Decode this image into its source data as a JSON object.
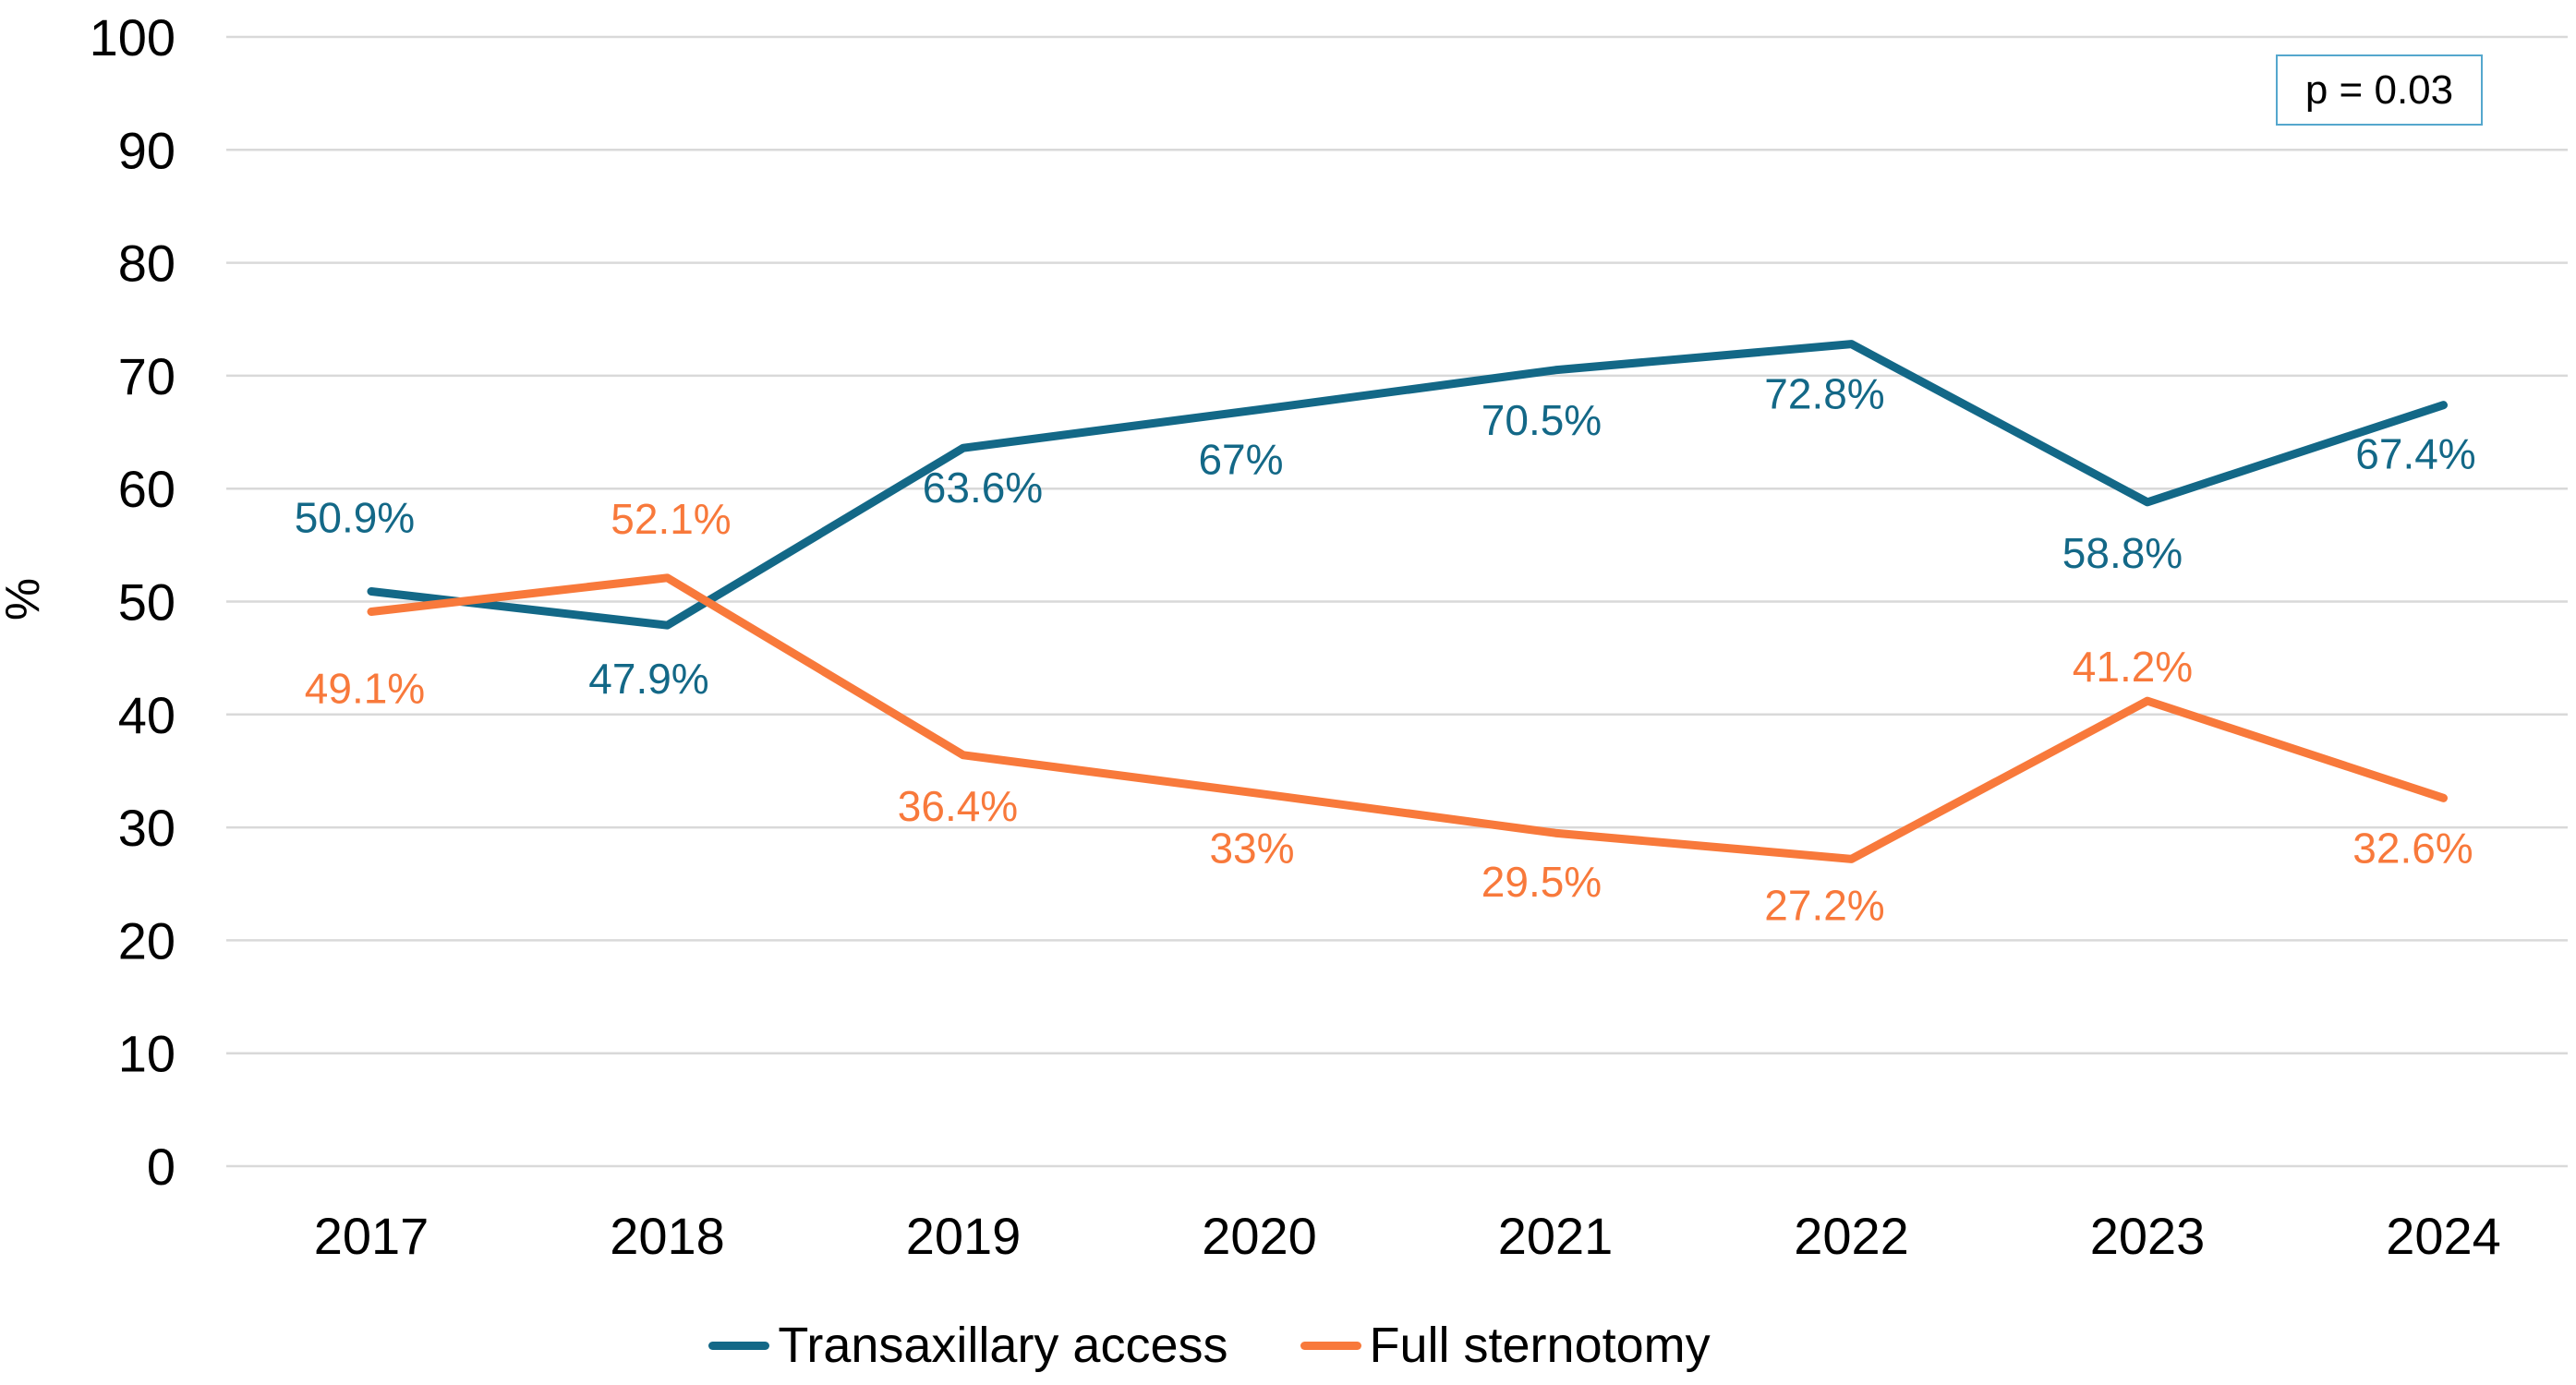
{
  "chart_data": {
    "type": "line",
    "title": "",
    "xlabel": "",
    "ylabel": "%",
    "ylim": [
      0,
      100
    ],
    "y_ticks": [
      0,
      10,
      20,
      30,
      40,
      50,
      60,
      70,
      80,
      90,
      100
    ],
    "grid": true,
    "legend_position": "bottom",
    "categories": [
      "2017",
      "2018",
      "2019",
      "2020",
      "2021",
      "2022",
      "2023",
      "2024"
    ],
    "series": [
      {
        "name": "Transaxillary access",
        "color": "#136887",
        "values": [
          50.9,
          47.9,
          63.6,
          67,
          70.5,
          72.8,
          58.8,
          67.4
        ],
        "point_labels": [
          "50.9%",
          "47.9%",
          "63.6%",
          "67%",
          "70.5%",
          "72.8%",
          "58.8%",
          "67.4%"
        ],
        "label_offsets": [
          [
            -18,
            -80
          ],
          [
            -20,
            58
          ],
          [
            21,
            43
          ],
          [
            -20,
            54
          ],
          [
            -15,
            54
          ],
          [
            -29,
            54
          ],
          [
            -27,
            55
          ],
          [
            -30,
            53
          ]
        ]
      },
      {
        "name": "Full sternotomy",
        "color": "#F8793B",
        "values": [
          49.1,
          52.1,
          36.4,
          33,
          29.5,
          27.2,
          41.2,
          32.6
        ],
        "point_labels": [
          "49.1%",
          "52.1%",
          "36.4%",
          "33%",
          "29.5%",
          "27.2%",
          "41.2%",
          "32.6%"
        ],
        "label_offsets": [
          [
            -7,
            83
          ],
          [
            4,
            -64
          ],
          [
            -6,
            55
          ],
          [
            -8,
            59
          ],
          [
            -15,
            53
          ],
          [
            -29,
            50
          ],
          [
            -16,
            -37
          ],
          [
            -33,
            54
          ]
        ]
      }
    ],
    "annotation": {
      "text": "p = 0.03",
      "border_color": "#55A7CD"
    },
    "colors": {
      "grid": "#D9D9D9",
      "axis_text": "#000000"
    }
  }
}
